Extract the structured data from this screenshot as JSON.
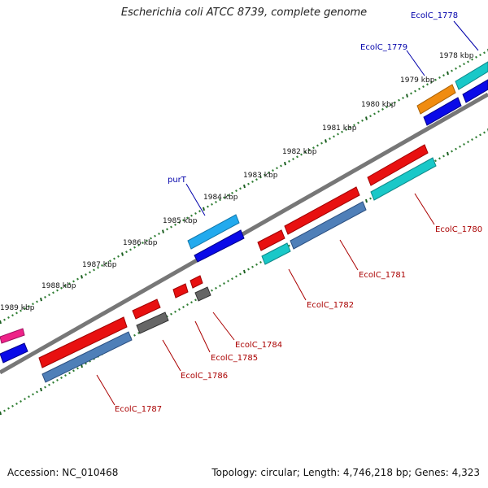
{
  "title": "Escherichia coli ATCC 8739, complete genome",
  "footer": {
    "accession": "Accession: NC_010468",
    "stats": "Topology: circular; Length: 4,746,218 bp; Genes: 4,323"
  },
  "kbp_labels": [
    "1978 kbp",
    "1979 kbp",
    "1980 kbp",
    "1981 kbp",
    "1982 kbp",
    "1983 kbp",
    "1984 kbp",
    "1985 kbp",
    "1986 kbp",
    "1987 kbp",
    "1988 kbp",
    "1989 kbp"
  ],
  "gene_labels": [
    {
      "id": "g1778",
      "text": "EcolC_1778",
      "color": "#0000aa"
    },
    {
      "id": "g1779",
      "text": "EcolC_1779",
      "color": "#0000aa"
    },
    {
      "id": "gpurT",
      "text": "purT",
      "color": "#0000aa"
    },
    {
      "id": "g1780",
      "text": "EcolC_1780",
      "color": "#aa0000"
    },
    {
      "id": "g1781",
      "text": "EcolC_1781",
      "color": "#aa0000"
    },
    {
      "id": "g1782",
      "text": "EcolC_1782",
      "color": "#aa0000"
    },
    {
      "id": "g1784",
      "text": "EcolC_1784",
      "color": "#aa0000"
    },
    {
      "id": "g1785",
      "text": "EcolC_1785",
      "color": "#aa0000"
    },
    {
      "id": "g1786",
      "text": "EcolC_1786",
      "color": "#aa0000"
    },
    {
      "id": "g1787",
      "text": "EcolC_1787",
      "color": "#aa0000"
    }
  ],
  "colors": {
    "backbone": "#777777",
    "tick": "#2e7d32",
    "red": "#e81010",
    "blue": "#0a0ae8",
    "cyan": "#19c8c8",
    "steel": "#4f7fb8",
    "sky": "#22aaee",
    "orange": "#f08c10",
    "pink": "#ee2288",
    "gray": "#666666"
  }
}
